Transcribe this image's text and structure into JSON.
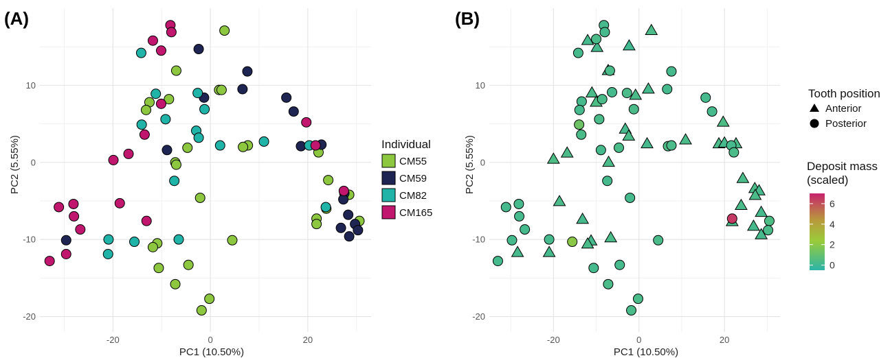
{
  "panels": [
    {
      "label": "(A)",
      "xlabel": "PC1 (10.50%)",
      "ylabel": "PC2 (5.55%)"
    },
    {
      "label": "(B)",
      "xlabel": "PC1 (10.50%)",
      "ylabel": "PC2 (5.55%)"
    }
  ],
  "legend_a": {
    "title": "Individual",
    "items": [
      {
        "label": "CM55",
        "color": "#8dc63f"
      },
      {
        "label": "CM59",
        "color": "#1f2553"
      },
      {
        "label": "CM82",
        "color": "#20b3a8"
      },
      {
        "label": "CM165",
        "color": "#c0166d"
      }
    ]
  },
  "legend_b_shape": {
    "title": "Tooth position",
    "items": [
      {
        "label": "Anterior",
        "shape": "triangle"
      },
      {
        "label": "Posterior",
        "shape": "circle"
      }
    ]
  },
  "legend_b_color": {
    "title_line1": "Deposit mass",
    "title_line2": "(scaled)",
    "ticks": [
      "6",
      "4",
      "2",
      "0"
    ],
    "gradient": [
      "#c8246d",
      "#b89a3c",
      "#9acb3a",
      "#2bb5a8"
    ]
  },
  "chart_data": [
    {
      "type": "scatter",
      "title": "(A)",
      "xlabel": "PC1 (10.50%)",
      "ylabel": "PC2 (5.55%)",
      "xlim": [
        -35,
        33
      ],
      "ylim": [
        -22,
        20
      ],
      "xticks": [
        -20,
        0,
        20
      ],
      "yticks": [
        -20,
        -10,
        0,
        10
      ],
      "grid": true,
      "legend_position": "right",
      "series": [
        {
          "name": "CM55",
          "color": "#8dc63f",
          "points": [
            [
              2.9,
              17.1
            ],
            [
              -7,
              11.9
            ],
            [
              -12.5,
              7.8
            ],
            [
              -13.2,
              6.8
            ],
            [
              -8.5,
              8.2
            ],
            [
              1.8,
              9.4
            ],
            [
              2.3,
              9.4
            ],
            [
              7.7,
              2.2
            ],
            [
              6.7,
              2
            ],
            [
              -4.7,
              1.9
            ],
            [
              -7.2,
              0
            ],
            [
              -7,
              -0.3
            ],
            [
              22,
              2.1
            ],
            [
              22.2,
              1.3
            ],
            [
              24.2,
              -2.3
            ],
            [
              -2.1,
              -4.6
            ],
            [
              21.8,
              -7.3
            ],
            [
              21.8,
              -8
            ],
            [
              23.8,
              -6
            ],
            [
              28.5,
              -4.2
            ],
            [
              30.6,
              -7.6
            ],
            [
              -10.9,
              -10.5
            ],
            [
              -11.8,
              -11
            ],
            [
              4.5,
              -10.1
            ],
            [
              -10.6,
              -13.7
            ],
            [
              -4.5,
              -13.3
            ],
            [
              -7.2,
              -15.8
            ],
            [
              -0.2,
              -17.7
            ],
            [
              -1.8,
              -19.2
            ]
          ]
        },
        {
          "name": "CM59",
          "color": "#1f2553",
          "points": [
            [
              -2.4,
              14.7
            ],
            [
              7.6,
              11.8
            ],
            [
              6.6,
              9.5
            ],
            [
              -1.3,
              8.4
            ],
            [
              15.6,
              8.4
            ],
            [
              17.1,
              6.6
            ],
            [
              18.6,
              2.1
            ],
            [
              22.8,
              2.3
            ],
            [
              -8.9,
              1.6
            ],
            [
              27.5,
              -4
            ],
            [
              27.3,
              -4.8
            ],
            [
              28.3,
              -6.8
            ],
            [
              29.7,
              -8
            ],
            [
              26.8,
              -8.5
            ],
            [
              30.3,
              -8.8
            ],
            [
              28.5,
              -9.6
            ],
            [
              -29.6,
              -10.1
            ]
          ]
        },
        {
          "name": "CM82",
          "color": "#20b3a8",
          "points": [
            [
              -14.2,
              14.2
            ],
            [
              -11.2,
              8.9
            ],
            [
              -2.6,
              9
            ],
            [
              -1.2,
              6.9
            ],
            [
              -9.2,
              5.6
            ],
            [
              -14.1,
              4.9
            ],
            [
              -2.9,
              4.1
            ],
            [
              -2.4,
              3.2
            ],
            [
              2,
              2.2
            ],
            [
              11,
              2.7
            ],
            [
              20.3,
              2.2
            ],
            [
              -7.4,
              -2.4
            ],
            [
              -20.9,
              -10
            ],
            [
              -15.6,
              -10.3
            ],
            [
              -6.5,
              -10
            ],
            [
              -21,
              -11.9
            ],
            [
              23.7,
              -5.8
            ]
          ]
        },
        {
          "name": "CM165",
          "color": "#c0166d",
          "points": [
            [
              -8.2,
              17.8
            ],
            [
              -8,
              16.9
            ],
            [
              -11.8,
              15.8
            ],
            [
              -10.1,
              14.5
            ],
            [
              -10.1,
              7.6
            ],
            [
              -13.5,
              3.6
            ],
            [
              19.7,
              5.2
            ],
            [
              21.6,
              2.2
            ],
            [
              -19.9,
              0.3
            ],
            [
              -16.8,
              1.1
            ],
            [
              -18.6,
              -5.3
            ],
            [
              -31.1,
              -5.8
            ],
            [
              -28.1,
              -5.4
            ],
            [
              -28,
              -7
            ],
            [
              -26.7,
              -8.7
            ],
            [
              -13.1,
              -7.6
            ],
            [
              27.4,
              -3.7
            ],
            [
              -29.6,
              -11.9
            ],
            [
              -33,
              -12.8
            ]
          ]
        }
      ]
    },
    {
      "type": "scatter",
      "title": "(B)",
      "xlabel": "PC1 (10.50%)",
      "ylabel": "PC2 (5.55%)",
      "xlim": [
        -35,
        33
      ],
      "ylim": [
        -22,
        20
      ],
      "xticks": [
        -20,
        0,
        20
      ],
      "yticks": [
        -20,
        -10,
        0,
        10
      ],
      "grid": true,
      "legend_position": "right",
      "color_scale": {
        "name": "Deposit mass (scaled)",
        "min": -0.5,
        "max": 7
      },
      "series": [
        {
          "name": "Anterior",
          "shape": "triangle",
          "points": [
            {
              "x": -12,
              "y": 15.8,
              "c": 0.2
            },
            {
              "x": -9.8,
              "y": 14.9,
              "c": 0.2
            },
            {
              "x": -2.3,
              "y": 15.1,
              "c": 0.1
            },
            {
              "x": 2.9,
              "y": 17.1,
              "c": 0.3
            },
            {
              "x": -7.2,
              "y": 11.9,
              "c": 0.2
            },
            {
              "x": -11,
              "y": 9,
              "c": 0.3
            },
            {
              "x": -10,
              "y": 7.8,
              "c": 0.4
            },
            {
              "x": 2.2,
              "y": 9.5,
              "c": 0.2
            },
            {
              "x": -0.8,
              "y": 8.7,
              "c": 0.3
            },
            {
              "x": -3.2,
              "y": 4.3,
              "c": 0.2
            },
            {
              "x": -2.4,
              "y": 3.4,
              "c": 0.3
            },
            {
              "x": 1.9,
              "y": 2.4,
              "c": 0.2
            },
            {
              "x": 10.9,
              "y": 2.9,
              "c": 0.3
            },
            {
              "x": 19.7,
              "y": 5.2,
              "c": 0.4
            },
            {
              "x": 18.7,
              "y": 2.4,
              "c": 0.3
            },
            {
              "x": 20,
              "y": 2.5,
              "c": 0.2
            },
            {
              "x": 22.7,
              "y": 2.4,
              "c": 0.3
            },
            {
              "x": -16.8,
              "y": 1.2,
              "c": 0.3
            },
            {
              "x": -20,
              "y": 0.4,
              "c": 0.4
            },
            {
              "x": -7.1,
              "y": 0,
              "c": 0.3
            },
            {
              "x": -18.6,
              "y": -5.1,
              "c": 0.3
            },
            {
              "x": -13.2,
              "y": -7.4,
              "c": 0.2
            },
            {
              "x": -6.6,
              "y": -9.8,
              "c": 0.3
            },
            {
              "x": -11.2,
              "y": -10.2,
              "c": 0.2
            },
            {
              "x": -12,
              "y": -10.6,
              "c": 0.3
            },
            {
              "x": -28.4,
              "y": -11.7,
              "c": 0.2
            },
            {
              "x": -21,
              "y": -11.7,
              "c": 0.2
            },
            {
              "x": 24.3,
              "y": -2.1,
              "c": 0.3
            },
            {
              "x": 27.1,
              "y": -3.4,
              "c": 0.3
            },
            {
              "x": 28.1,
              "y": -3.7,
              "c": 0.2
            },
            {
              "x": 27.2,
              "y": -4.3,
              "c": 0.3
            },
            {
              "x": 23.9,
              "y": -5.6,
              "c": 0.3
            },
            {
              "x": 28.6,
              "y": -6.5,
              "c": 0.2
            },
            {
              "x": 21.8,
              "y": -7.7,
              "c": 0.3
            },
            {
              "x": 26.8,
              "y": -8.3,
              "c": 0.2
            },
            {
              "x": 28.6,
              "y": -9.4,
              "c": 0.2
            }
          ]
        },
        {
          "name": "Posterior",
          "shape": "circle",
          "points": [
            {
              "x": -8.2,
              "y": 17.8,
              "c": 0.2
            },
            {
              "x": -8,
              "y": 16.9,
              "c": 0.2
            },
            {
              "x": -10,
              "y": 16,
              "c": 0.3
            },
            {
              "x": -14.2,
              "y": 14.2,
              "c": 0.2
            },
            {
              "x": -6.8,
              "y": 11.9,
              "c": 0.3
            },
            {
              "x": 7.6,
              "y": 11.8,
              "c": 0.2
            },
            {
              "x": -6.3,
              "y": 9.1,
              "c": 0.2
            },
            {
              "x": -2.8,
              "y": 9,
              "c": 0.3
            },
            {
              "x": 6.6,
              "y": 9.5,
              "c": 0.2
            },
            {
              "x": 15.6,
              "y": 8.4,
              "c": 0.2
            },
            {
              "x": -13.4,
              "y": 7.9,
              "c": 0.2
            },
            {
              "x": -8.6,
              "y": 8.2,
              "c": 0.3
            },
            {
              "x": -13.9,
              "y": 6.8,
              "c": 0.2
            },
            {
              "x": -1.2,
              "y": 6.9,
              "c": 0.3
            },
            {
              "x": 17.1,
              "y": 6.6,
              "c": 0.2
            },
            {
              "x": -9.3,
              "y": 5.6,
              "c": 0.3
            },
            {
              "x": -14,
              "y": 4.9,
              "c": 1.2
            },
            {
              "x": -13.5,
              "y": 3.6,
              "c": 0.3
            },
            {
              "x": -8.9,
              "y": 1.6,
              "c": 0.2
            },
            {
              "x": -4.7,
              "y": 1.9,
              "c": 0.3
            },
            {
              "x": 6.8,
              "y": 2.1,
              "c": 0.4
            },
            {
              "x": 7.6,
              "y": 2.2,
              "c": 0.3
            },
            {
              "x": 21.6,
              "y": 2.2,
              "c": 0.2
            },
            {
              "x": 22.2,
              "y": 1.3,
              "c": 0.3
            },
            {
              "x": -7.4,
              "y": -2.4,
              "c": 0.2
            },
            {
              "x": -2.1,
              "y": -4.6,
              "c": 0.2
            },
            {
              "x": -31.1,
              "y": -5.8,
              "c": 0.2
            },
            {
              "x": -28.1,
              "y": -5.4,
              "c": 0.2
            },
            {
              "x": -28,
              "y": -7,
              "c": 0.2
            },
            {
              "x": -26.7,
              "y": -8.7,
              "c": 0.2
            },
            {
              "x": 21.8,
              "y": -7.3,
              "c": 6.5
            },
            {
              "x": 30.5,
              "y": -7.6,
              "c": 0.4
            },
            {
              "x": 30.2,
              "y": -8.8,
              "c": 0.3
            },
            {
              "x": -29.7,
              "y": -10.1,
              "c": 0.2
            },
            {
              "x": -21,
              "y": -10,
              "c": 0.2
            },
            {
              "x": -15.6,
              "y": -10.3,
              "c": 2
            },
            {
              "x": 4.5,
              "y": -10.1,
              "c": 0.3
            },
            {
              "x": -10.6,
              "y": -13.7,
              "c": 0.2
            },
            {
              "x": -4.5,
              "y": -13.3,
              "c": 0.2
            },
            {
              "x": -33,
              "y": -12.8,
              "c": 0.2
            },
            {
              "x": -7.2,
              "y": -15.8,
              "c": 0.3
            },
            {
              "x": -0.2,
              "y": -17.7,
              "c": 0.3
            },
            {
              "x": -1.8,
              "y": -19.2,
              "c": 0.3
            }
          ]
        }
      ]
    }
  ]
}
